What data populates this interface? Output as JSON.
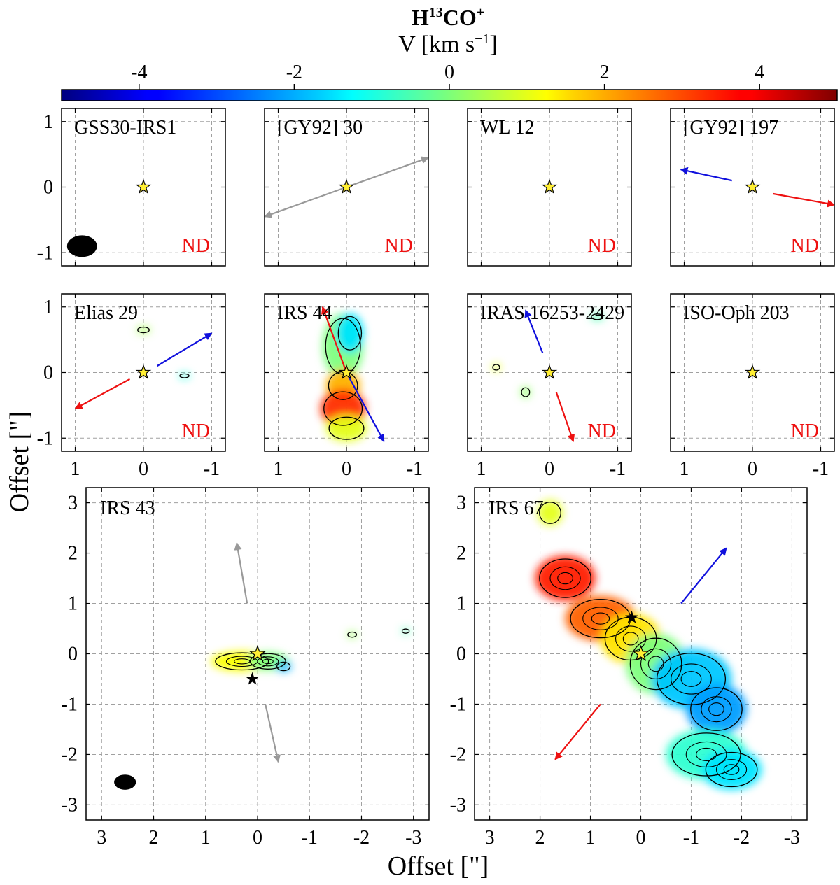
{
  "colorbar": {
    "title_main": "H",
    "title_sup": "13",
    "title_co": "CO",
    "title_plus": "+",
    "label": "V [km s",
    "label_exp": "−1",
    "label_close": "]",
    "ticks": [
      -4,
      -2,
      0,
      2,
      4
    ],
    "tick_labels": [
      "-4",
      "-2",
      "0",
      "2",
      "4"
    ],
    "vmin": -5,
    "vmax": 5
  },
  "axes": {
    "xlabel": "Offset [\"]",
    "ylabel": "Offset [\"]"
  },
  "small_ticks": {
    "x": [
      1,
      0,
      -1
    ],
    "x_labels": [
      "1",
      "0",
      "-1"
    ],
    "y": [
      1,
      0,
      -1
    ],
    "y_labels": [
      "1",
      "0",
      "-1"
    ]
  },
  "large_ticks": {
    "x": [
      3,
      2,
      1,
      0,
      -1,
      -2,
      -3
    ],
    "x_labels": [
      "3",
      "2",
      "1",
      "0",
      "-1",
      "-2",
      "-3"
    ],
    "y": [
      3,
      2,
      1,
      0,
      -1,
      -2,
      -3
    ],
    "y_labels": [
      "3",
      "2",
      "1",
      "0",
      "-1",
      "-2",
      "-3"
    ]
  },
  "chart_data": [
    {
      "type": "heatmap",
      "name": "GSS30-IRS1",
      "title": "GSS30-IRS1",
      "flag": "ND",
      "xlim": [
        1.2,
        -1.2
      ],
      "ylim": [
        -1.2,
        1.2
      ],
      "arrows": [],
      "beam": {
        "x": 0.9,
        "y": -0.9,
        "major": 0.44,
        "minor": 0.33
      },
      "blobs": []
    },
    {
      "type": "heatmap",
      "name": "[GY92] 30",
      "title": "[GY92] 30",
      "flag": "ND",
      "xlim": [
        1.2,
        -1.2
      ],
      "ylim": [
        -1.2,
        1.2
      ],
      "arrows": [
        {
          "color": "gray",
          "x1": 0.0,
          "y1": 0.0,
          "x2": -1.2,
          "y2": 0.45
        },
        {
          "color": "gray",
          "x1": 0.0,
          "y1": 0.0,
          "x2": 1.2,
          "y2": -0.45
        }
      ],
      "blobs": []
    },
    {
      "type": "heatmap",
      "name": "WL 12",
      "title": "WL 12",
      "flag": "ND",
      "xlim": [
        1.2,
        -1.2
      ],
      "ylim": [
        -1.2,
        1.2
      ],
      "arrows": [],
      "blobs": []
    },
    {
      "type": "heatmap",
      "name": "[GY92] 197",
      "title": "[GY92] 197",
      "flag": "ND",
      "xlim": [
        1.2,
        -1.2
      ],
      "ylim": [
        -1.2,
        1.2
      ],
      "arrows": [
        {
          "color": "blue",
          "x1": 0.3,
          "y1": 0.1,
          "x2": 1.05,
          "y2": 0.27
        },
        {
          "color": "red",
          "x1": -0.3,
          "y1": -0.1,
          "x2": -1.2,
          "y2": -0.27
        }
      ],
      "blobs": []
    },
    {
      "type": "heatmap",
      "name": "Elias 29",
      "title": "Elias 29",
      "flag": "ND",
      "xlim": [
        1.2,
        -1.2
      ],
      "ylim": [
        -1.2,
        1.2
      ],
      "arrows": [
        {
          "color": "blue",
          "x1": -0.2,
          "y1": 0.1,
          "x2": -1.0,
          "y2": 0.6
        },
        {
          "color": "red",
          "x1": 0.2,
          "y1": -0.1,
          "x2": 1.0,
          "y2": -0.55
        }
      ],
      "blobs": [
        {
          "x": 0.0,
          "y": 0.65,
          "rx": 0.1,
          "ry": 0.05,
          "v": 0.4
        },
        {
          "x": -0.6,
          "y": -0.05,
          "rx": 0.08,
          "ry": 0.035,
          "v": -0.9
        }
      ]
    },
    {
      "type": "heatmap",
      "name": "IRS 44",
      "title": "IRS 44",
      "flag": "",
      "xlim": [
        1.2,
        -1.2
      ],
      "ylim": [
        -1.2,
        1.2
      ],
      "arrows": [
        {
          "color": "red",
          "x1": 0.0,
          "y1": 0.0,
          "x2": 0.35,
          "y2": 1.0
        },
        {
          "color": "blue",
          "x1": 0.0,
          "y1": 0.0,
          "x2": -0.55,
          "y2": -1.05
        }
      ],
      "blobs": [
        {
          "x": 0.05,
          "y": 0.4,
          "rx": 0.3,
          "ry": 0.5,
          "v": 0.0
        },
        {
          "x": -0.05,
          "y": 0.6,
          "rx": 0.2,
          "ry": 0.3,
          "v": -1.5
        },
        {
          "x": 0.05,
          "y": -0.2,
          "rx": 0.25,
          "ry": 0.25,
          "v": 2.0
        },
        {
          "x": 0.05,
          "y": -0.55,
          "rx": 0.33,
          "ry": 0.3,
          "v": 3.3
        },
        {
          "x": 0.0,
          "y": -0.85,
          "rx": 0.3,
          "ry": 0.2,
          "v": 1.0
        }
      ]
    },
    {
      "type": "heatmap",
      "name": "IRAS 16253-2429",
      "title": "IRAS 16253-2429",
      "flag": "ND",
      "xlim": [
        1.2,
        -1.2
      ],
      "ylim": [
        -1.2,
        1.2
      ],
      "arrows": [
        {
          "color": "blue",
          "x1": 0.1,
          "y1": 0.3,
          "x2": 0.35,
          "y2": 0.95
        },
        {
          "color": "red",
          "x1": -0.1,
          "y1": -0.3,
          "x2": -0.35,
          "y2": -1.05
        }
      ],
      "blobs": [
        {
          "x": 0.35,
          "y": -0.3,
          "rx": 0.07,
          "ry": 0.08,
          "v": 0.2
        },
        {
          "x": -0.7,
          "y": 0.85,
          "rx": 0.1,
          "ry": 0.05,
          "v": -0.5
        },
        {
          "x": 0.78,
          "y": 0.08,
          "rx": 0.06,
          "ry": 0.05,
          "v": 1.0
        }
      ]
    },
    {
      "type": "heatmap",
      "name": "ISO-Oph 203",
      "title": "ISO-Oph 203",
      "flag": "ND",
      "xlim": [
        1.2,
        -1.2
      ],
      "ylim": [
        -1.2,
        1.2
      ],
      "arrows": [],
      "blobs": []
    },
    {
      "type": "heatmap",
      "name": "IRS 43",
      "title": "IRS 43",
      "flag": "",
      "xlim": [
        3.3,
        -3.3
      ],
      "ylim": [
        -3.3,
        3.3
      ],
      "arrows": [
        {
          "color": "gray",
          "x1": 0.2,
          "y1": 1.0,
          "x2": 0.4,
          "y2": 2.2
        },
        {
          "color": "gray",
          "x1": -0.15,
          "y1": -1.0,
          "x2": -0.4,
          "y2": -2.15
        }
      ],
      "beam": {
        "x": 2.55,
        "y": -2.55,
        "major": 0.42,
        "minor": 0.3
      },
      "blobs": [
        {
          "x": 0.3,
          "y": -0.15,
          "rx": 0.6,
          "ry": 0.2,
          "v": 1.2
        },
        {
          "x": -0.2,
          "y": -0.15,
          "rx": 0.4,
          "ry": 0.18,
          "v": 0.0
        },
        {
          "x": -0.5,
          "y": -0.25,
          "rx": 0.15,
          "ry": 0.1,
          "v": -2.0
        },
        {
          "x": -1.82,
          "y": 0.38,
          "rx": 0.1,
          "ry": 0.06,
          "v": 0.3
        },
        {
          "x": -2.85,
          "y": 0.45,
          "rx": 0.08,
          "ry": 0.05,
          "v": -0.5
        }
      ]
    },
    {
      "type": "heatmap",
      "name": "IRS 67",
      "title": "IRS 67",
      "flag": "",
      "xlim": [
        3.3,
        -3.3
      ],
      "ylim": [
        -3.3,
        3.3
      ],
      "arrows": [
        {
          "color": "blue",
          "x1": -0.8,
          "y1": 1.0,
          "x2": -1.7,
          "y2": 2.1
        },
        {
          "color": "red",
          "x1": 0.8,
          "y1": -1.0,
          "x2": 1.7,
          "y2": -2.1
        }
      ],
      "blobs": [
        {
          "x": 1.8,
          "y": 2.8,
          "rx": 0.25,
          "ry": 0.25,
          "v": 1.0
        },
        {
          "x": 1.5,
          "y": 1.5,
          "rx": 0.6,
          "ry": 0.45,
          "v": 3.5
        },
        {
          "x": 0.8,
          "y": 0.7,
          "rx": 0.7,
          "ry": 0.45,
          "v": 2.8
        },
        {
          "x": 0.2,
          "y": 0.3,
          "rx": 0.6,
          "ry": 0.5,
          "v": 1.5
        },
        {
          "x": -0.3,
          "y": -0.2,
          "rx": 0.6,
          "ry": 0.6,
          "v": 0.0
        },
        {
          "x": -1.0,
          "y": -0.5,
          "rx": 0.8,
          "ry": 0.6,
          "v": -1.8
        },
        {
          "x": -1.5,
          "y": -1.1,
          "rx": 0.6,
          "ry": 0.5,
          "v": -2.2
        },
        {
          "x": -1.3,
          "y": -2.0,
          "rx": 0.8,
          "ry": 0.5,
          "v": -0.8
        },
        {
          "x": -1.8,
          "y": -2.3,
          "rx": 0.6,
          "ry": 0.4,
          "v": -1.5
        }
      ]
    }
  ]
}
